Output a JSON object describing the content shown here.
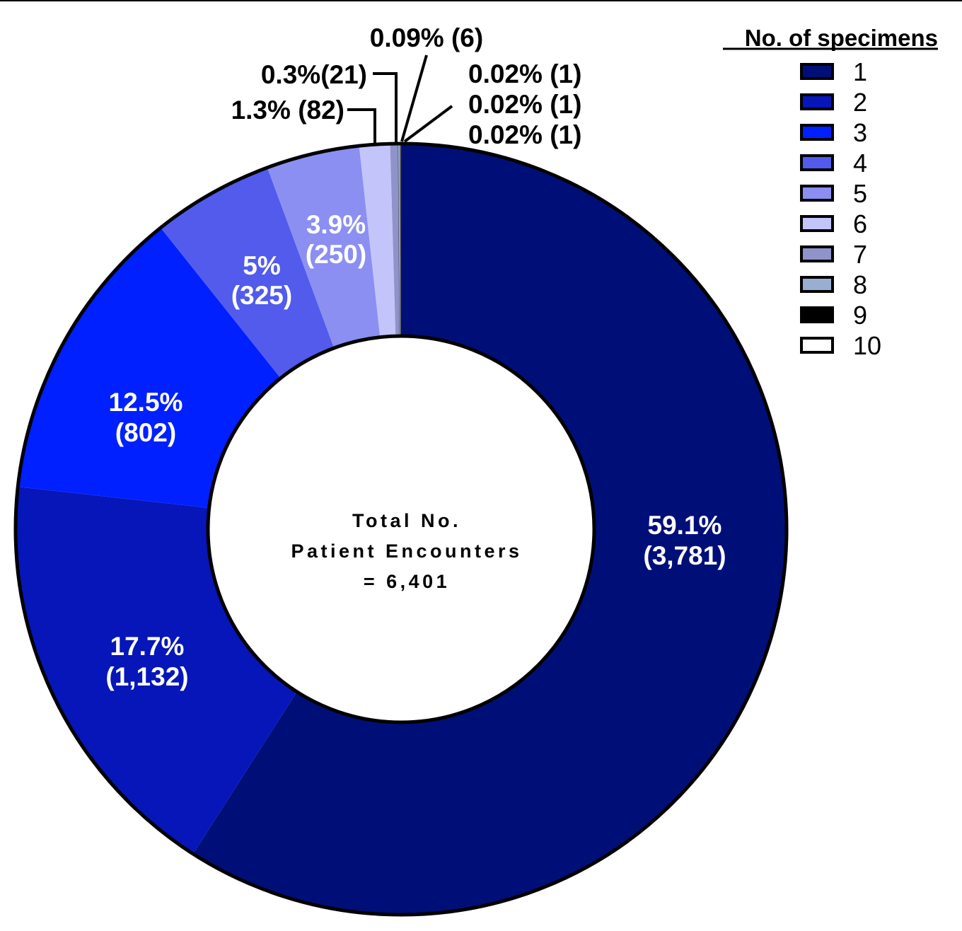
{
  "chart_data": {
    "type": "pie",
    "variant": "donut",
    "legend_title": "No. of specimens",
    "legend_placement": "top-right",
    "center_text": [
      "Total No.",
      "Patient Encounters",
      "= 6,401"
    ],
    "total": 6401,
    "slices": [
      {
        "category": "1",
        "value": 3781,
        "percent_label": "59.1%",
        "count_label": "(3,781)",
        "color": "#000f78"
      },
      {
        "category": "2",
        "value": 1132,
        "percent_label": "17.7%",
        "count_label": "(1,132)",
        "color": "#0616b8"
      },
      {
        "category": "3",
        "value": 802,
        "percent_label": "12.5%",
        "count_label": "(802)",
        "color": "#0020ff"
      },
      {
        "category": "4",
        "value": 325,
        "percent_label": "5%",
        "count_label": "(325)",
        "color": "#525bec"
      },
      {
        "category": "5",
        "value": 250,
        "percent_label": "3.9%",
        "count_label": "(250)",
        "color": "#8b8ff2"
      },
      {
        "category": "6",
        "value": 82,
        "label": "1.3% (82)",
        "color": "#c3c4f9"
      },
      {
        "category": "7",
        "value": 21,
        "label": "0.3%(21)",
        "color": "#8f93c9"
      },
      {
        "category": "8",
        "value": 6,
        "label": "0.09% (6)",
        "color": "#9aaed2"
      },
      {
        "category": "9",
        "value": 1,
        "label": "0.02% (1)",
        "color": "#000000"
      },
      {
        "category": "10",
        "value": 1,
        "label": "0.02% (1)",
        "color": "#ffffff"
      }
    ],
    "extra_callout_label": "0.02% (1)"
  }
}
